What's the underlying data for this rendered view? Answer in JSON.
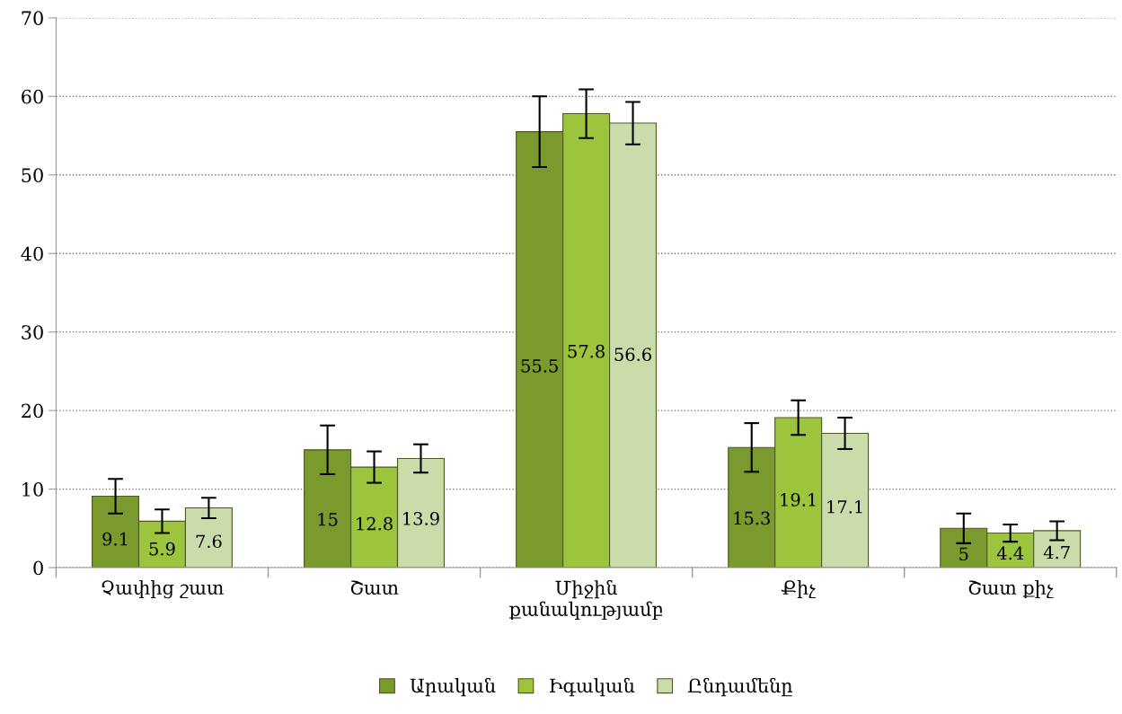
{
  "chart_data": {
    "type": "bar",
    "categories": [
      "Չափից շատ",
      "Շատ",
      "Միջին\nքանակությամբ",
      "Քիչ",
      "Շատ քիչ"
    ],
    "series": [
      {
        "name": "Արական",
        "color": "#7a9a2e",
        "values": [
          9.1,
          15,
          55.5,
          15.3,
          5
        ],
        "errors": [
          2.2,
          3.1,
          4.5,
          3.1,
          1.9
        ]
      },
      {
        "name": "Իգական",
        "color": "#9cc43c",
        "values": [
          5.9,
          12.8,
          57.8,
          19.1,
          4.4
        ],
        "errors": [
          1.5,
          2.0,
          3.1,
          2.2,
          1.1
        ]
      },
      {
        "name": "Ընդամենը",
        "color": "#c9dcaa",
        "values": [
          7.6,
          13.9,
          56.6,
          17.1,
          4.7
        ],
        "errors": [
          1.3,
          1.8,
          2.7,
          2.0,
          1.2
        ]
      }
    ],
    "ylim": [
      0,
      70
    ],
    "yticks": [
      0,
      10,
      20,
      30,
      40,
      50,
      60,
      70
    ],
    "grid": "y",
    "legend": "bottom",
    "data_labels": true
  }
}
